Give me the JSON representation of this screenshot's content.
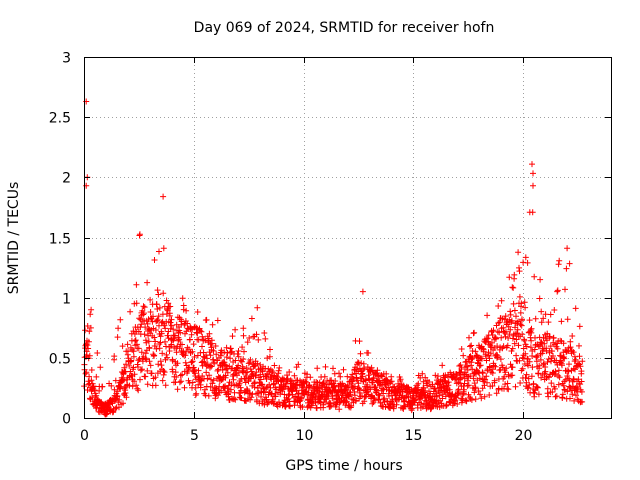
{
  "chart_data": {
    "type": "scatter",
    "title": "Day 069 of 2024, SRMTID for receiver hofn",
    "xlabel": "GPS time / hours",
    "ylabel": "SRMTID / TECUs",
    "xlim": [
      0,
      24
    ],
    "ylim": [
      0,
      3
    ],
    "xticks": [
      0,
      5,
      10,
      15,
      20
    ],
    "xtick_labels": [
      "0",
      "5",
      "10",
      "15",
      "20"
    ],
    "yticks": [
      0,
      0.5,
      1,
      1.5,
      2,
      2.5,
      3
    ],
    "ytick_labels": [
      "0",
      "0.5",
      "1",
      "1.5",
      "2",
      "2.5",
      "3"
    ],
    "grid": true,
    "marker": "+",
    "series": [
      {
        "name": "SRMTID",
        "color": "#ff0000",
        "x_range": [
          0,
          22.7
        ],
        "envelope_x": [
          0,
          0.5,
          1,
          1.5,
          2,
          2.5,
          3,
          3.5,
          4,
          5,
          6,
          7,
          8,
          9,
          10,
          11,
          12,
          12.5,
          13,
          14,
          15,
          16,
          17,
          18,
          19,
          20,
          20.5,
          21,
          22,
          22.7
        ],
        "envelope_typical": [
          0.7,
          0.15,
          0.08,
          0.15,
          0.45,
          0.65,
          0.7,
          0.8,
          0.65,
          0.55,
          0.45,
          0.4,
          0.33,
          0.25,
          0.22,
          0.22,
          0.2,
          0.35,
          0.3,
          0.22,
          0.18,
          0.22,
          0.3,
          0.45,
          0.6,
          0.75,
          0.5,
          0.5,
          0.45,
          0.35
        ],
        "envelope_peak": [
          2.6,
          0.6,
          0.4,
          0.8,
          1.0,
          1.55,
          1.3,
          1.85,
          1.0,
          1.05,
          0.85,
          0.75,
          0.95,
          0.5,
          0.45,
          0.45,
          0.4,
          1.05,
          0.5,
          0.35,
          0.35,
          0.4,
          0.55,
          0.8,
          1.0,
          1.5,
          2.1,
          1.15,
          1.4,
          0.95
        ],
        "notable_points": [
          {
            "x": 0.1,
            "y": 2.63
          },
          {
            "x": 0.15,
            "y": 2.0
          },
          {
            "x": 0.1,
            "y": 1.93
          },
          {
            "x": 3.6,
            "y": 1.84
          },
          {
            "x": 12.7,
            "y": 1.05
          },
          {
            "x": 20.4,
            "y": 2.11
          },
          {
            "x": 20.45,
            "y": 1.93
          },
          {
            "x": 20.3,
            "y": 1.71
          },
          {
            "x": 22.0,
            "y": 1.41
          }
        ]
      }
    ]
  }
}
